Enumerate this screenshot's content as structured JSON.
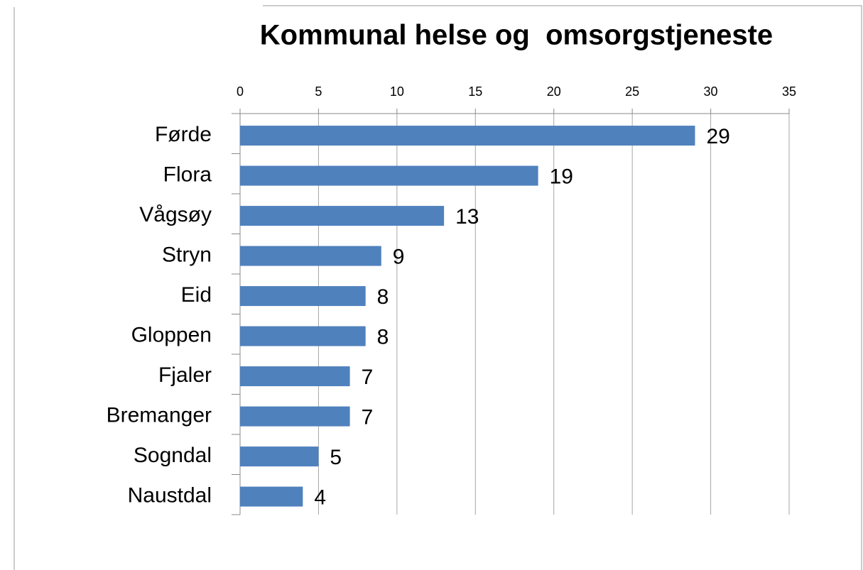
{
  "chart_data": {
    "type": "bar",
    "orientation": "horizontal",
    "title": "Kommunal helse og  omsorgstjeneste",
    "categories": [
      "Førde",
      "Flora",
      "Vågsøy",
      "Stryn",
      "Eid",
      "Gloppen",
      "Fjaler",
      "Bremanger",
      "Sogndal",
      "Naustdal"
    ],
    "values": [
      29,
      19,
      13,
      9,
      8,
      8,
      7,
      7,
      5,
      4
    ],
    "color": "#4f81bd",
    "xlim": [
      0,
      35
    ],
    "xticks": [
      0,
      5,
      10,
      15,
      20,
      25,
      30,
      35
    ],
    "grid": true
  }
}
